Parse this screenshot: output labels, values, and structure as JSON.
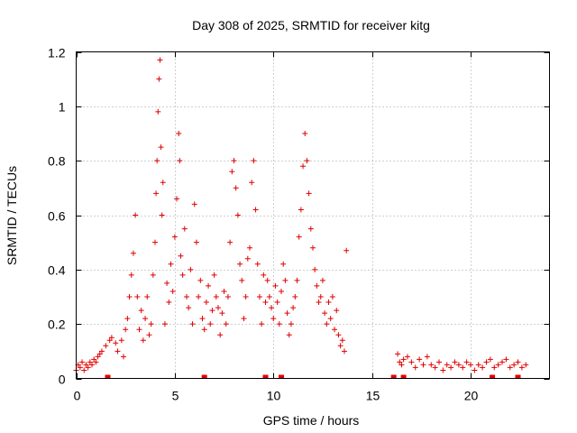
{
  "chart_data": {
    "type": "scatter",
    "title": "Day 308 of 2025, SRMTID for receiver kitg",
    "xlabel": "GPS time / hours",
    "ylabel": "SRMTID / TECUs",
    "xlim": [
      0,
      24
    ],
    "ylim": [
      0,
      1.2
    ],
    "x_ticks": [
      0,
      5,
      10,
      15,
      20
    ],
    "x_tick_labels": [
      "0",
      "5",
      "10",
      "15",
      "20"
    ],
    "y_ticks": [
      0,
      0.2,
      0.4,
      0.6,
      0.8,
      1.0,
      1.2
    ],
    "y_tick_labels": [
      "0",
      "0.2",
      "0.4",
      "0.6",
      "0.8",
      "1",
      "1.2"
    ],
    "grid": true,
    "marker": "+",
    "color": "#e00000",
    "series": [
      {
        "name": "SRMTID",
        "points": [
          [
            0.0,
            0.03
          ],
          [
            0.1,
            0.05
          ],
          [
            0.2,
            0.04
          ],
          [
            0.3,
            0.06
          ],
          [
            0.4,
            0.03
          ],
          [
            0.5,
            0.05
          ],
          [
            0.6,
            0.04
          ],
          [
            0.7,
            0.06
          ],
          [
            0.8,
            0.05
          ],
          [
            0.9,
            0.07
          ],
          [
            1.0,
            0.06
          ],
          [
            1.1,
            0.08
          ],
          [
            1.2,
            0.09
          ],
          [
            1.3,
            0.1
          ],
          [
            1.5,
            0.12
          ],
          [
            1.7,
            0.14
          ],
          [
            1.8,
            0.15
          ],
          [
            2.0,
            0.13
          ],
          [
            2.1,
            0.1
          ],
          [
            2.3,
            0.14
          ],
          [
            2.4,
            0.08
          ],
          [
            2.5,
            0.18
          ],
          [
            2.6,
            0.22
          ],
          [
            2.7,
            0.3
          ],
          [
            2.8,
            0.38
          ],
          [
            2.9,
            0.46
          ],
          [
            3.0,
            0.6
          ],
          [
            3.1,
            0.3
          ],
          [
            3.2,
            0.18
          ],
          [
            3.3,
            0.25
          ],
          [
            3.4,
            0.14
          ],
          [
            3.5,
            0.22
          ],
          [
            3.6,
            0.3
          ],
          [
            3.7,
            0.16
          ],
          [
            3.8,
            0.2
          ],
          [
            3.9,
            0.38
          ],
          [
            4.0,
            0.5
          ],
          [
            4.05,
            0.68
          ],
          [
            4.1,
            0.8
          ],
          [
            4.15,
            0.98
          ],
          [
            4.2,
            1.1
          ],
          [
            4.25,
            1.17
          ],
          [
            4.3,
            0.85
          ],
          [
            4.35,
            0.6
          ],
          [
            4.4,
            0.72
          ],
          [
            4.5,
            0.2
          ],
          [
            4.6,
            0.35
          ],
          [
            4.7,
            0.28
          ],
          [
            4.8,
            0.42
          ],
          [
            4.9,
            0.32
          ],
          [
            5.0,
            0.52
          ],
          [
            5.1,
            0.66
          ],
          [
            5.2,
            0.9
          ],
          [
            5.25,
            0.8
          ],
          [
            5.3,
            0.45
          ],
          [
            5.4,
            0.38
          ],
          [
            5.5,
            0.55
          ],
          [
            5.6,
            0.3
          ],
          [
            5.7,
            0.26
          ],
          [
            5.8,
            0.4
          ],
          [
            5.9,
            0.2
          ],
          [
            6.0,
            0.64
          ],
          [
            6.1,
            0.5
          ],
          [
            6.2,
            0.3
          ],
          [
            6.3,
            0.36
          ],
          [
            6.4,
            0.22
          ],
          [
            6.5,
            0.18
          ],
          [
            6.6,
            0.28
          ],
          [
            6.7,
            0.34
          ],
          [
            6.8,
            0.2
          ],
          [
            6.9,
            0.25
          ],
          [
            7.0,
            0.38
          ],
          [
            7.1,
            0.3
          ],
          [
            7.2,
            0.26
          ],
          [
            7.3,
            0.16
          ],
          [
            7.4,
            0.24
          ],
          [
            7.5,
            0.32
          ],
          [
            7.6,
            0.2
          ],
          [
            7.7,
            0.3
          ],
          [
            7.8,
            0.5
          ],
          [
            7.9,
            0.76
          ],
          [
            8.0,
            0.8
          ],
          [
            8.1,
            0.7
          ],
          [
            8.2,
            0.6
          ],
          [
            8.3,
            0.42
          ],
          [
            8.4,
            0.36
          ],
          [
            8.5,
            0.22
          ],
          [
            8.6,
            0.3
          ],
          [
            8.7,
            0.44
          ],
          [
            8.8,
            0.48
          ],
          [
            8.9,
            0.72
          ],
          [
            9.0,
            0.8
          ],
          [
            9.1,
            0.62
          ],
          [
            9.2,
            0.42
          ],
          [
            9.3,
            0.3
          ],
          [
            9.4,
            0.2
          ],
          [
            9.5,
            0.38
          ],
          [
            9.6,
            0.28
          ],
          [
            9.7,
            0.36
          ],
          [
            9.8,
            0.3
          ],
          [
            9.9,
            0.26
          ],
          [
            10.0,
            0.22
          ],
          [
            10.1,
            0.34
          ],
          [
            10.2,
            0.28
          ],
          [
            10.3,
            0.2
          ],
          [
            10.4,
            0.32
          ],
          [
            10.5,
            0.42
          ],
          [
            10.6,
            0.36
          ],
          [
            10.7,
            0.24
          ],
          [
            10.8,
            0.16
          ],
          [
            10.9,
            0.2
          ],
          [
            11.0,
            0.26
          ],
          [
            11.1,
            0.3
          ],
          [
            11.2,
            0.36
          ],
          [
            11.3,
            0.52
          ],
          [
            11.4,
            0.62
          ],
          [
            11.5,
            0.78
          ],
          [
            11.6,
            0.9
          ],
          [
            11.7,
            0.8
          ],
          [
            11.8,
            0.68
          ],
          [
            11.9,
            0.55
          ],
          [
            12.0,
            0.48
          ],
          [
            12.1,
            0.4
          ],
          [
            12.2,
            0.34
          ],
          [
            12.3,
            0.28
          ],
          [
            12.4,
            0.3
          ],
          [
            12.5,
            0.36
          ],
          [
            12.6,
            0.24
          ],
          [
            12.7,
            0.2
          ],
          [
            12.8,
            0.28
          ],
          [
            12.9,
            0.22
          ],
          [
            13.0,
            0.3
          ],
          [
            13.1,
            0.18
          ],
          [
            13.2,
            0.25
          ],
          [
            13.3,
            0.16
          ],
          [
            13.4,
            0.12
          ],
          [
            13.5,
            0.14
          ],
          [
            13.6,
            0.1
          ],
          [
            13.7,
            0.47
          ],
          [
            16.3,
            0.09
          ],
          [
            16.4,
            0.06
          ],
          [
            16.5,
            0.05
          ],
          [
            16.6,
            0.07
          ],
          [
            16.8,
            0.08
          ],
          [
            17.0,
            0.06
          ],
          [
            17.2,
            0.04
          ],
          [
            17.4,
            0.07
          ],
          [
            17.6,
            0.05
          ],
          [
            17.8,
            0.08
          ],
          [
            18.0,
            0.05
          ],
          [
            18.2,
            0.04
          ],
          [
            18.4,
            0.06
          ],
          [
            18.6,
            0.03
          ],
          [
            18.8,
            0.05
          ],
          [
            19.0,
            0.04
          ],
          [
            19.2,
            0.06
          ],
          [
            19.4,
            0.05
          ],
          [
            19.6,
            0.04
          ],
          [
            19.8,
            0.06
          ],
          [
            20.0,
            0.05
          ],
          [
            20.2,
            0.03
          ],
          [
            20.4,
            0.05
          ],
          [
            20.6,
            0.04
          ],
          [
            20.8,
            0.06
          ],
          [
            21.0,
            0.07
          ],
          [
            21.2,
            0.04
          ],
          [
            21.4,
            0.05
          ],
          [
            21.6,
            0.06
          ],
          [
            21.8,
            0.07
          ],
          [
            22.0,
            0.04
          ],
          [
            22.2,
            0.05
          ],
          [
            22.4,
            0.06
          ],
          [
            22.6,
            0.04
          ],
          [
            22.8,
            0.05
          ]
        ]
      }
    ],
    "bottom_markers_x": [
      1.6,
      6.5,
      9.6,
      10.4,
      16.1,
      16.6,
      21.1,
      22.4
    ]
  }
}
